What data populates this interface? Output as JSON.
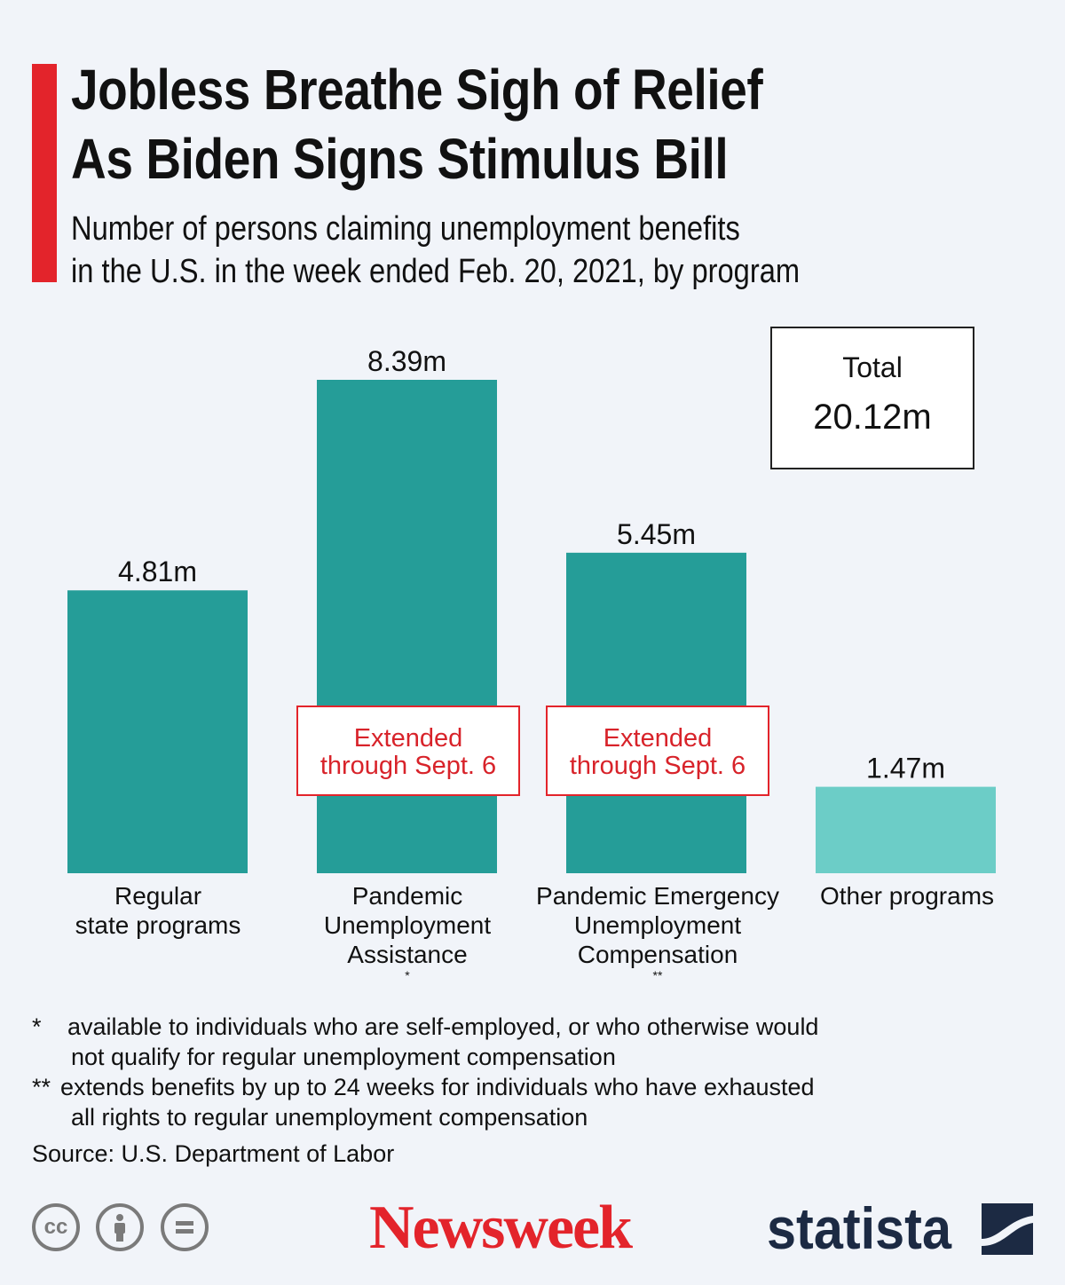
{
  "header": {
    "title_line1": "Jobless Breathe Sigh of Relief",
    "title_line2": "As Biden Signs Stimulus Bill",
    "subtitle_line1": "Number of persons claiming unemployment benefits",
    "subtitle_line2": "in the U.S. in the week ended Feb. 20, 2021, by program"
  },
  "total": {
    "label": "Total",
    "value": "20.12m"
  },
  "notes": {
    "line1": "Extended",
    "line2": "through Sept. 6"
  },
  "chart_data": {
    "type": "bar",
    "title": "Jobless Breathe Sigh of Relief As Biden Signs Stimulus Bill",
    "subtitle": "Number of persons claiming unemployment benefits in the U.S. in the week ended Feb. 20, 2021, by program",
    "xlabel": "",
    "ylabel": "",
    "unit": "millions",
    "ylim": [
      0,
      8.39
    ],
    "grid": false,
    "categories": [
      "Regular state programs",
      "Pandemic Unemployment Assistance*",
      "Pandemic Emergency Unemployment Compensation**",
      "Other programs"
    ],
    "values": [
      4.81,
      8.39,
      5.45,
      1.47
    ],
    "value_labels": [
      "4.81m",
      "8.39m",
      "5.45m",
      "1.47m"
    ],
    "colors": [
      "#259d98",
      "#259d98",
      "#259d98",
      "#6ccdc7"
    ]
  },
  "categories": {
    "c1": {
      "line1": "Regular",
      "line2": "state programs"
    },
    "c2": {
      "line1": "Pandemic",
      "line2": "Unemployment",
      "line3": "Assistance",
      "mark": "*"
    },
    "c3": {
      "line1": "Pandemic Emergency",
      "line2": "Unemployment",
      "line3": "Compensation",
      "mark": "**"
    },
    "c4": {
      "line1": "Other programs"
    }
  },
  "footnotes": {
    "f1_mark": "*",
    "f1_line1": "available to individuals who are self-employed, or who otherwise would",
    "f1_line2": "not qualify for regular unemployment compensation",
    "f2_mark": "**",
    "f2_line1": "extends benefits by up to 24 weeks for individuals who have exhausted",
    "f2_line2": "all rights to regular unemployment compensation"
  },
  "source": "Source: U.S. Department of Labor",
  "branding": {
    "newsweek": "Newsweek",
    "statista": "statista",
    "cc_icons": [
      "creative-commons-icon",
      "attribution-icon",
      "no-derivatives-icon"
    ],
    "accent_color": "#e3242b",
    "bar_color": "#259d98",
    "bar_color_light": "#6ccdc7"
  }
}
